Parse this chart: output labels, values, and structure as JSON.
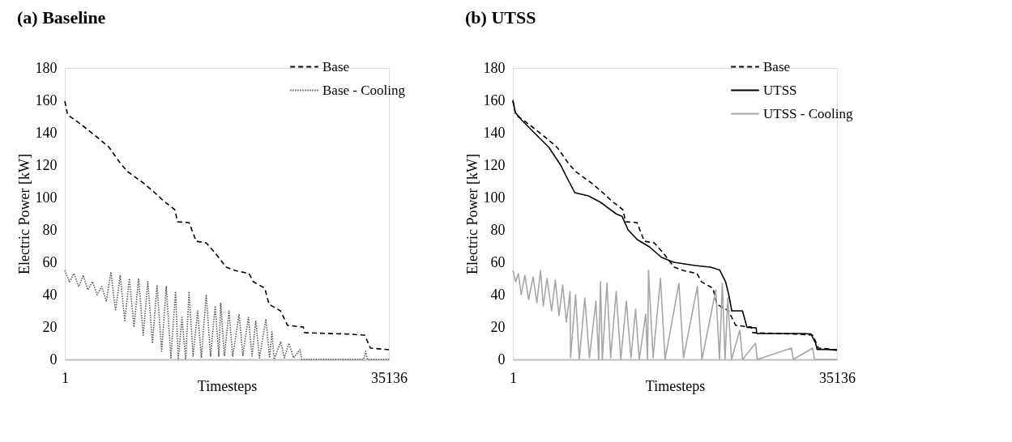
{
  "chart_data": [
    {
      "type": "line",
      "title": "(a) Baseline",
      "xlabel": "Timesteps",
      "ylabel": "Electric Power [kW]",
      "xlim": [
        1,
        35136
      ],
      "xticks": [
        1,
        35136
      ],
      "ylim": [
        0,
        180
      ],
      "yticks": [
        0,
        20,
        40,
        60,
        80,
        100,
        120,
        140,
        160,
        180
      ],
      "grid": false,
      "legend": "top right",
      "series": [
        {
          "name": "Base",
          "color": "#000000",
          "line_style": "dashed",
          "x": [
            1,
            310,
            1084,
            2013,
            3560,
            4800,
            6040,
            6810,
            8514,
            9752,
            10680,
            11920,
            12230,
            13470,
            14240,
            15330,
            16260,
            17500,
            18430,
            19970,
            20440,
            21680,
            22140,
            23380,
            24150,
            25860,
            26010,
            30500,
            32510,
            33130,
            35136
          ],
          "values": [
            159.5,
            151,
            148,
            144,
            137,
            131,
            121,
            116,
            109,
            103,
            98,
            92.5,
            85,
            84.5,
            73,
            72,
            66,
            57,
            55,
            53,
            48,
            44,
            34,
            30,
            21,
            20,
            16.5,
            15.7,
            15,
            7,
            6
          ]
        },
        {
          "name": "Base - Cooling",
          "color": "#595959",
          "line_style": "dotted",
          "x": [
            1,
            500,
            1000,
            1500,
            2000,
            2500,
            3000,
            3500,
            4000,
            4500,
            5000,
            5500,
            6000,
            6500,
            7000,
            7500,
            8000,
            8500,
            9000,
            9500,
            10000,
            10500,
            11000,
            11500,
            12000,
            12300,
            12700,
            13100,
            13470,
            13900,
            14400,
            14800,
            15330,
            15800,
            16300,
            16700,
            16900,
            17300,
            17800,
            18200,
            18900,
            19300,
            19900,
            20300,
            20700,
            21100,
            21800,
            22200,
            22450,
            22700,
            23400,
            23800,
            24300,
            24800,
            25500,
            25700,
            32400,
            32600,
            32800,
            35136
          ],
          "values": [
            55,
            48,
            53,
            45,
            52,
            43,
            48,
            40,
            45,
            36,
            54,
            30,
            52,
            24,
            50,
            20,
            50,
            15,
            48,
            10,
            46,
            5,
            45,
            1,
            42,
            0,
            26,
            0,
            42,
            2,
            30,
            1,
            40,
            2,
            33,
            2,
            35,
            2,
            30,
            2,
            28,
            2,
            26,
            2,
            24,
            1,
            25,
            1,
            17,
            0,
            11,
            1,
            10,
            1,
            6,
            0,
            0,
            5,
            0,
            0
          ]
        }
      ]
    },
    {
      "type": "line",
      "title": "(b) UTSS",
      "xlabel": "Timesteps",
      "ylabel": "Electric Power [kW]",
      "xlim": [
        1,
        35136
      ],
      "xticks": [
        1,
        35136
      ],
      "ylim": [
        0,
        180
      ],
      "yticks": [
        0,
        20,
        40,
        60,
        80,
        100,
        120,
        140,
        160,
        180
      ],
      "grid": false,
      "legend": "top right",
      "series": [
        {
          "name": "Base",
          "color": "#000000",
          "line_style": "dashed",
          "x": [
            1,
            310,
            1084,
            2013,
            3560,
            4800,
            6040,
            6810,
            8514,
            9752,
            10680,
            11920,
            12230,
            13470,
            14240,
            15330,
            16260,
            17500,
            18430,
            19970,
            20440,
            21680,
            22140,
            23380,
            24150,
            25860,
            26010,
            30500,
            32510,
            33130,
            35136
          ],
          "values": [
            159.5,
            151,
            148,
            144,
            137,
            131,
            121,
            116,
            109,
            103,
            98,
            92.5,
            85,
            84.5,
            73,
            72,
            66,
            57,
            55,
            53,
            48,
            44,
            34,
            30,
            21,
            20,
            16.5,
            15.7,
            15,
            7,
            6
          ]
        },
        {
          "name": "UTSS",
          "color": "#000000",
          "line_style": "solid",
          "x": [
            1,
            265,
            926,
            2579,
            3901,
            5223,
            5884,
            6710,
            8198,
            9520,
            11172,
            11833,
            12494,
            13485,
            14807,
            16129,
            17451,
            19765,
            21417,
            22409,
            23070,
            23401,
            23731,
            24888,
            25384,
            26375,
            26441,
            31332,
            32323,
            32819,
            32984,
            34141,
            35136
          ],
          "values": [
            160.2,
            152.6,
            148,
            138.5,
            131,
            119.6,
            112,
            103,
            101,
            97,
            90,
            88.4,
            80,
            74,
            69.5,
            63,
            60,
            58,
            57,
            55.3,
            47.8,
            40,
            30,
            30,
            19.8,
            19.5,
            16,
            16,
            15.7,
            10,
            6.2,
            6.2,
            5.7
          ]
        },
        {
          "name": "UTSS - Cooling",
          "color": "#a6a6a6",
          "line_style": "solid",
          "x": [
            1,
            300,
            600,
            900,
            1300,
            1700,
            2200,
            2600,
            3000,
            3300,
            3700,
            4200,
            4600,
            5000,
            5400,
            5800,
            6200,
            6250,
            6800,
            7200,
            7800,
            8300,
            9000,
            9300,
            9500,
            9700,
            10200,
            10600,
            11200,
            11700,
            12300,
            12800,
            13300,
            13700,
            14400,
            14600,
            14700,
            15200,
            16000,
            16500,
            18000,
            18500,
            20000,
            20500,
            22000,
            22400,
            22700,
            23000,
            23300,
            23700,
            24600,
            24900,
            26300,
            26500,
            30200,
            30400,
            32500,
            32700,
            35136
          ],
          "values": [
            55,
            48,
            53,
            40,
            52,
            37,
            51,
            35,
            55,
            33,
            50,
            30,
            49,
            27,
            46,
            23,
            42,
            1,
            40,
            0,
            38,
            1,
            36,
            0,
            48,
            0,
            47,
            1,
            42,
            0,
            36,
            1,
            31,
            0,
            28,
            0,
            55,
            1,
            50,
            0,
            47,
            1,
            45,
            0,
            43,
            0,
            47,
            0,
            38,
            0,
            18,
            0,
            10,
            0,
            7,
            0,
            7,
            0,
            0
          ]
        }
      ]
    }
  ]
}
